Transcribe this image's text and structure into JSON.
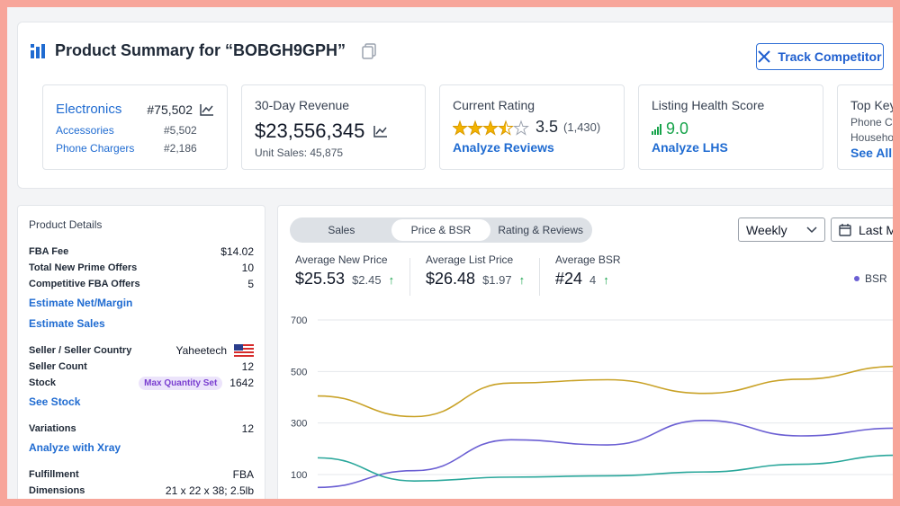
{
  "header": {
    "title": "Product Summary for “BOBGH9GPH”",
    "track_button": "Track Competitor"
  },
  "cards": {
    "category": {
      "name": "Electronics",
      "rank": "#75,502",
      "subs": [
        {
          "name": "Accessories",
          "rank": "#5,502"
        },
        {
          "name": "Phone Chargers",
          "rank": "#2,186"
        }
      ]
    },
    "revenue": {
      "label": "30-Day Revenue",
      "value": "$23,556,345",
      "unit_sales": "Unit Sales: 45,875"
    },
    "rating": {
      "label": "Current Rating",
      "stars": 3.5,
      "value": "3.5",
      "count": "(1,430)",
      "link": "Analyze Reviews"
    },
    "lhs": {
      "label": "Listing Health Score",
      "value": "9.0",
      "link": "Analyze LHS"
    },
    "keywords": {
      "label": "Top Key",
      "items": [
        "Phone C",
        "Househo"
      ],
      "link": "See All"
    }
  },
  "details": {
    "title": "Product Details",
    "fba_fee_label": "FBA Fee",
    "fba_fee": "$14.02",
    "prime_offers_label": "Total New Prime Offers",
    "prime_offers": "10",
    "fba_offers_label": "Competitive FBA Offers",
    "fba_offers": "5",
    "estimate_net": "Estimate Net/Margin",
    "estimate_sales": "Estimate Sales",
    "seller_label": "Seller / Seller Country",
    "seller": "Yaheetech",
    "seller_count_label": "Seller Count",
    "seller_count": "12",
    "stock_label": "Stock",
    "stock_badge": "Max Quantity Set",
    "stock": "1642",
    "see_stock": "See Stock",
    "variations_label": "Variations",
    "variations": "12",
    "analyze_xray": "Analyze with Xray",
    "fulfillment_label": "Fulfillment",
    "fulfillment": "FBA",
    "dimensions_label": "Dimensions",
    "dimensions": "21 x 22 x 38; 2.5lb"
  },
  "chart_panel": {
    "tabs": [
      "Sales",
      "Price & BSR",
      "Rating & Reviews"
    ],
    "active_tab": 1,
    "period": "Weekly",
    "range": "Last M",
    "metrics": [
      {
        "label": "Average New Price",
        "value": "$25.53",
        "delta": "$2.45"
      },
      {
        "label": "Average List Price",
        "value": "$26.48",
        "delta": "$1.97"
      },
      {
        "label": "Average BSR",
        "value": "#24",
        "delta": "4"
      }
    ],
    "legend": "BSR"
  },
  "chart_data": {
    "type": "line",
    "yticks": [
      100,
      300,
      500,
      700
    ],
    "ylim": [
      100,
      700
    ],
    "x": [
      0,
      1,
      2,
      3,
      4,
      5,
      6
    ],
    "series": [
      {
        "color": "#c9a227",
        "values": [
          405,
          325,
          455,
          468,
          415,
          470,
          520
        ]
      },
      {
        "color": "#6b5fd3",
        "values": [
          50,
          115,
          235,
          215,
          310,
          250,
          280
        ]
      },
      {
        "color": "#2aa79b",
        "values": [
          165,
          75,
          90,
          95,
          110,
          140,
          175
        ]
      }
    ]
  },
  "colors": {
    "accent": "#1f6bd1",
    "frame": "#f7a59a",
    "star": "#f4b400",
    "good": "#16a34a"
  }
}
